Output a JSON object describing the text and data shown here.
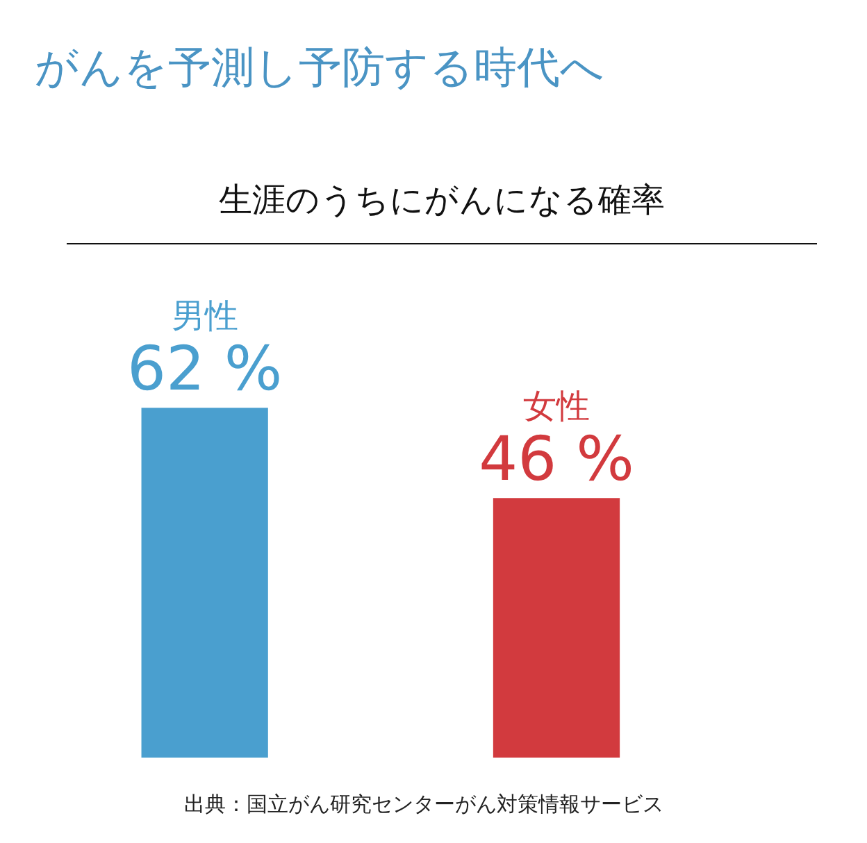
{
  "chart_data": {
    "type": "bar",
    "title": "がんを予測し予防する時代へ",
    "subtitle": "生涯のうちにがんになる確率",
    "categories": [
      "男性",
      "女性"
    ],
    "values": [
      62,
      46
    ],
    "colors": [
      "#4a9fcf",
      "#d23a3e"
    ],
    "value_labels": [
      "62 %",
      "46 %"
    ],
    "tick_labels": "x",
    "annotations": [
      "出典：国立がん研究センターがん対策情報サービス"
    ]
  }
}
